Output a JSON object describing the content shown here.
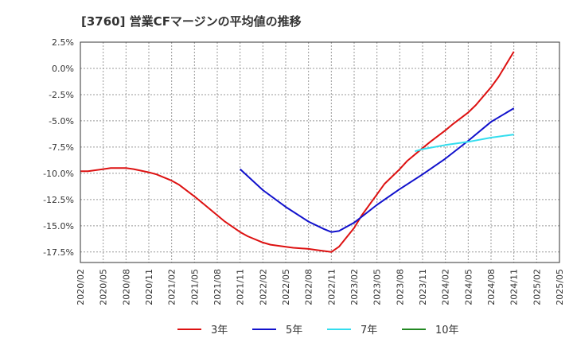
{
  "chart_data": {
    "type": "line",
    "title": "[3760]  営業CFマージンの平均値の推移",
    "ylim": [
      -18.5,
      2.5
    ],
    "y_ticks": [
      2.5,
      0.0,
      -2.5,
      -5.0,
      -7.5,
      -10.0,
      -12.5,
      -15.0,
      -17.5
    ],
    "y_tick_labels": [
      "2.5%",
      "0.0%",
      "-2.5%",
      "-5.0%",
      "-7.5%",
      "-10.0%",
      "-12.5%",
      "-15.0%",
      "-17.5%"
    ],
    "x_tick_labels": [
      "2020/02",
      "2020/05",
      "2020/08",
      "2020/11",
      "2021/02",
      "2021/05",
      "2021/08",
      "2021/11",
      "2022/02",
      "2022/05",
      "2022/08",
      "2022/11",
      "2023/02",
      "2023/05",
      "2023/08",
      "2023/11",
      "2024/02",
      "2024/05",
      "2024/08",
      "2024/11",
      "2025/02",
      "2025/05"
    ],
    "grid": true,
    "legend_position": "bottom",
    "series": [
      {
        "name": "3年",
        "color": "#dd1111",
        "x": [
          "2020/02",
          "2020/03",
          "2020/05",
          "2020/06",
          "2020/08",
          "2020/09",
          "2020/11",
          "2020/12",
          "2021/02",
          "2021/03",
          "2021/05",
          "2021/06",
          "2021/08",
          "2021/09",
          "2021/11",
          "2021/12",
          "2022/02",
          "2022/03",
          "2022/05",
          "2022/06",
          "2022/08",
          "2022/09",
          "2022/10",
          "2022/11",
          "2022/12",
          "2023/02",
          "2023/03",
          "2023/05",
          "2023/06",
          "2023/08",
          "2023/09",
          "2023/11",
          "2023/12",
          "2024/02",
          "2024/03",
          "2024/05",
          "2024/06",
          "2024/08",
          "2024/09",
          "2024/11"
        ],
        "values": [
          -9.8,
          -9.8,
          -9.6,
          -9.5,
          -9.5,
          -9.6,
          -9.9,
          -10.1,
          -10.7,
          -11.1,
          -12.2,
          -12.8,
          -14.0,
          -14.6,
          -15.6,
          -16.0,
          -16.6,
          -16.8,
          -17.0,
          -17.1,
          -17.2,
          -17.3,
          -17.4,
          -17.5,
          -17.0,
          -15.2,
          -14.0,
          -12.0,
          -11.0,
          -9.6,
          -8.8,
          -7.6,
          -7.0,
          -5.9,
          -5.3,
          -4.2,
          -3.5,
          -1.8,
          -0.8,
          1.6
        ]
      },
      {
        "name": "5年",
        "color": "#1111cc",
        "x": [
          "2021/11",
          "2022/02",
          "2022/05",
          "2022/08",
          "2022/10",
          "2022/11",
          "2022/12",
          "2023/02",
          "2023/05",
          "2023/08",
          "2023/11",
          "2024/02",
          "2024/05",
          "2024/08",
          "2024/11"
        ],
        "values": [
          -9.6,
          -11.6,
          -13.2,
          -14.6,
          -15.3,
          -15.6,
          -15.5,
          -14.7,
          -13.0,
          -11.5,
          -10.1,
          -8.6,
          -6.9,
          -5.1,
          -3.8
        ]
      },
      {
        "name": "7年",
        "color": "#33ddee",
        "x": [
          "2023/10",
          "2023/11",
          "2024/02",
          "2024/05",
          "2024/08",
          "2024/11"
        ],
        "values": [
          -7.9,
          -7.7,
          -7.3,
          -7.0,
          -6.6,
          -6.3
        ]
      },
      {
        "name": "10年",
        "color": "#228822",
        "x": [],
        "values": []
      }
    ]
  }
}
